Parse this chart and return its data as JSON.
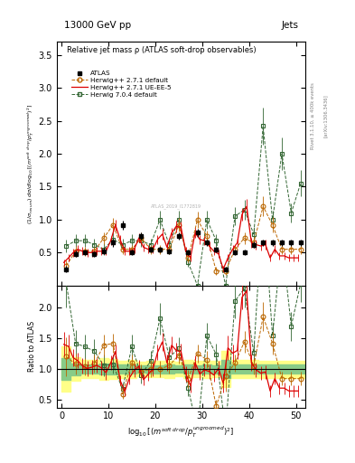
{
  "title_top": "13000 GeV pp",
  "title_right": "Jets",
  "main_title": "Relative jet mass ρ (ATLAS soft-drop observables)",
  "ylabel_main": "(1/σ$_{resum}$) dσ/d log$_{10}$[(m$^{soft drop}$/p$_T^{ungroomed}$)$^2$]",
  "ylabel_ratio": "Ratio to ATLAS",
  "right_label_top": "Rivet 3.1.10, ≥ 400k events",
  "right_label_bot": "[arXiv:1306.3436]",
  "watermark": "ATLAS_2019_I1772819",
  "xlim": [
    -1,
    52
  ],
  "ylim_main": [
    0,
    3.7
  ],
  "ylim_ratio": [
    0.38,
    2.35
  ],
  "atlas_color": "#000000",
  "herwig271_color": "#bb6600",
  "herwig271ue_color": "#dd0000",
  "herwig704_color": "#336633",
  "band_yellow": "#ffff88",
  "band_green": "#88cc88",
  "yticks_main": [
    0.5,
    1.0,
    1.5,
    2.0,
    2.5,
    3.0,
    3.5
  ],
  "yticks_ratio": [
    0.5,
    1.0,
    1.5,
    2.0
  ],
  "xticks": [
    0,
    10,
    20,
    30,
    40,
    50
  ],
  "atlas_x": [
    1,
    3,
    5,
    7,
    9,
    11,
    13,
    15,
    17,
    19,
    21,
    23,
    25,
    27,
    29,
    31,
    33,
    35,
    37,
    39,
    41,
    43,
    45,
    47,
    49,
    51
  ],
  "atlas_y": [
    0.25,
    0.48,
    0.5,
    0.48,
    0.52,
    0.65,
    0.92,
    0.5,
    0.75,
    0.55,
    0.55,
    0.52,
    0.75,
    0.5,
    0.8,
    0.65,
    0.55,
    0.25,
    0.5,
    0.5,
    0.62,
    0.65,
    0.65,
    0.65,
    0.65,
    0.65
  ],
  "atlas_yerr": [
    0.05,
    0.05,
    0.04,
    0.04,
    0.05,
    0.06,
    0.07,
    0.04,
    0.05,
    0.04,
    0.04,
    0.04,
    0.05,
    0.04,
    0.06,
    0.05,
    0.04,
    0.04,
    0.04,
    0.04,
    0.05,
    0.05,
    0.05,
    0.05,
    0.05,
    0.05
  ],
  "h271_x": [
    1,
    3,
    5,
    7,
    9,
    11,
    13,
    15,
    17,
    19,
    21,
    23,
    25,
    27,
    29,
    31,
    33,
    35,
    37,
    39,
    41,
    43,
    45,
    47,
    49,
    51
  ],
  "h271_y": [
    0.3,
    0.52,
    0.52,
    0.52,
    0.72,
    0.92,
    0.55,
    0.55,
    0.72,
    0.55,
    0.55,
    0.55,
    0.92,
    0.42,
    1.0,
    0.75,
    0.22,
    0.22,
    0.55,
    0.72,
    0.65,
    1.2,
    0.92,
    0.55,
    0.55,
    0.55
  ],
  "h271_yerr": [
    0.08,
    0.08,
    0.07,
    0.07,
    0.09,
    0.1,
    0.07,
    0.07,
    0.09,
    0.07,
    0.07,
    0.07,
    0.1,
    0.07,
    0.12,
    0.09,
    0.06,
    0.06,
    0.07,
    0.09,
    0.08,
    0.15,
    0.12,
    0.07,
    0.07,
    0.07
  ],
  "h271ue_x": [
    0.5,
    1.5,
    2.5,
    3.5,
    4.5,
    5.5,
    6.5,
    7.5,
    8.5,
    9.5,
    10.5,
    11.5,
    12.5,
    13.5,
    14.5,
    15.5,
    16.5,
    17.5,
    18.5,
    19.5,
    20.5,
    21.5,
    22.5,
    23.5,
    24.5,
    25.5,
    26.5,
    27.5,
    28.5,
    29.5,
    30.5,
    31.5,
    32.5,
    33.5,
    34.5,
    35.5,
    36.5,
    37.5,
    38.5,
    39.5,
    40.5,
    41.5,
    42.5,
    43.5,
    44.5,
    45.5,
    46.5,
    47.5,
    48.5,
    49.5,
    50.5
  ],
  "h271ue_y": [
    0.35,
    0.42,
    0.5,
    0.55,
    0.52,
    0.5,
    0.5,
    0.52,
    0.52,
    0.52,
    0.68,
    0.92,
    0.7,
    0.52,
    0.52,
    0.55,
    0.72,
    0.58,
    0.55,
    0.55,
    0.7,
    0.78,
    0.58,
    0.8,
    0.9,
    0.88,
    0.52,
    0.42,
    0.8,
    0.7,
    0.68,
    0.6,
    0.52,
    0.48,
    0.25,
    0.42,
    0.55,
    0.65,
    1.08,
    1.2,
    0.65,
    0.62,
    0.6,
    0.62,
    0.42,
    0.55,
    0.45,
    0.45,
    0.42,
    0.42,
    0.42
  ],
  "h271ue_yerr": [
    0.05,
    0.06,
    0.06,
    0.06,
    0.06,
    0.06,
    0.06,
    0.06,
    0.06,
    0.06,
    0.07,
    0.08,
    0.07,
    0.06,
    0.06,
    0.06,
    0.07,
    0.06,
    0.06,
    0.06,
    0.07,
    0.08,
    0.07,
    0.08,
    0.09,
    0.09,
    0.07,
    0.06,
    0.08,
    0.07,
    0.07,
    0.07,
    0.06,
    0.06,
    0.05,
    0.06,
    0.06,
    0.07,
    0.1,
    0.12,
    0.08,
    0.07,
    0.07,
    0.07,
    0.06,
    0.06,
    0.06,
    0.06,
    0.06,
    0.06,
    0.06
  ],
  "h704_x": [
    1,
    3,
    5,
    7,
    9,
    11,
    13,
    15,
    17,
    19,
    21,
    23,
    25,
    27,
    29,
    31,
    33,
    35,
    37,
    39,
    41,
    43,
    45,
    47,
    49,
    51
  ],
  "h704_y": [
    0.6,
    0.68,
    0.68,
    0.62,
    0.55,
    0.7,
    0.62,
    0.68,
    0.68,
    0.62,
    1.0,
    0.62,
    1.0,
    0.35,
    0.0,
    1.0,
    0.68,
    0.0,
    1.05,
    1.15,
    0.78,
    2.42,
    1.0,
    2.0,
    1.1,
    1.55
  ],
  "h704_yerr": [
    0.1,
    0.1,
    0.1,
    0.09,
    0.09,
    0.1,
    0.09,
    0.1,
    0.1,
    0.09,
    0.14,
    0.09,
    0.14,
    0.07,
    0.05,
    0.14,
    0.1,
    0.05,
    0.14,
    0.15,
    0.11,
    0.28,
    0.14,
    0.25,
    0.15,
    0.2
  ]
}
